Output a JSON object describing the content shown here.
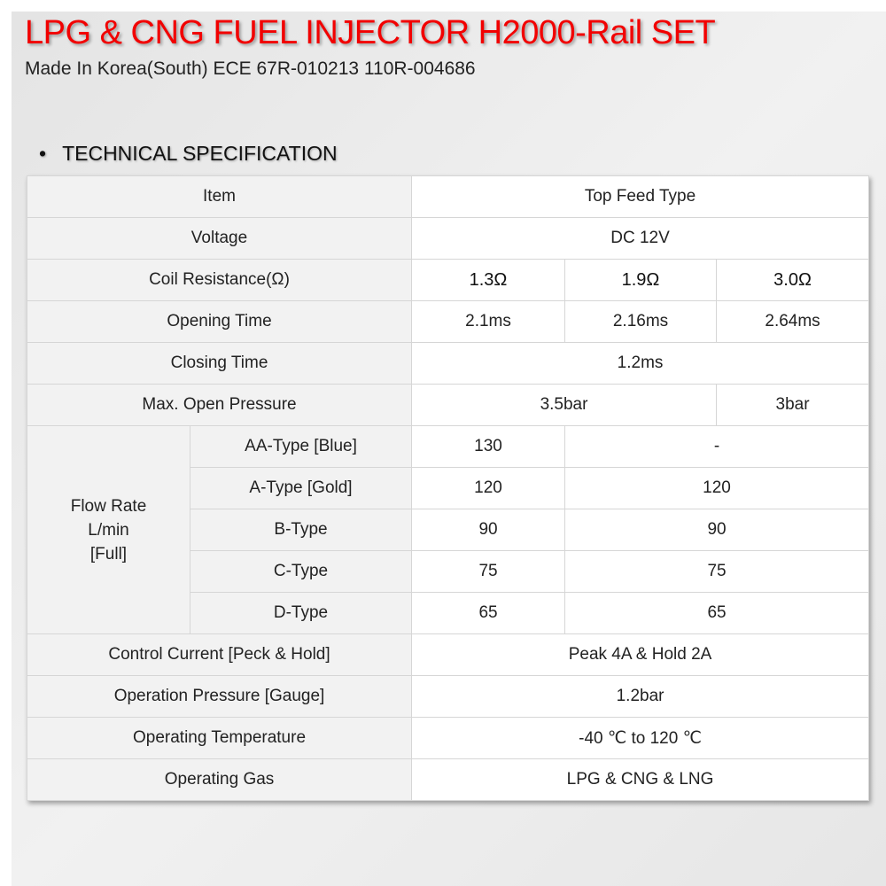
{
  "header": {
    "title": "LPG & CNG FUEL INJECTOR H2000-Rail SET",
    "subtitle": "Made In Korea(South) ECE 67R-010213 110R-004686",
    "section_bullet": "•",
    "section_title": "TECHNICAL SPECIFICATION",
    "title_color": "#f20000"
  },
  "spec": {
    "item": {
      "label": "Item",
      "value": "Top Feed Type"
    },
    "voltage": {
      "label": "Voltage",
      "value": "DC 12V"
    },
    "coil": {
      "label": "Coil Resistance(Ω)",
      "values": [
        "1.3Ω",
        "1.9Ω",
        "3.0Ω"
      ]
    },
    "opening": {
      "label": "Opening Time",
      "values": [
        "2.1ms",
        "2.16ms",
        "2.64ms"
      ]
    },
    "closing": {
      "label": "Closing Time",
      "value": "1.2ms"
    },
    "pressure": {
      "label": "Max. Open Pressure",
      "values": [
        "3.5bar",
        "3bar"
      ]
    },
    "flow": {
      "label_lines": [
        "Flow Rate",
        "L/min",
        "[Full]"
      ],
      "rows": [
        {
          "type": "AA-Type [Blue]",
          "a": "130",
          "b": "-"
        },
        {
          "type": "A-Type [Gold]",
          "a": "120",
          "b": "120"
        },
        {
          "type": "B-Type",
          "a": "90",
          "b": "90"
        },
        {
          "type": "C-Type",
          "a": "75",
          "b": "75"
        },
        {
          "type": "D-Type",
          "a": "65",
          "b": "65"
        }
      ]
    },
    "current": {
      "label": "Control Current [Peck & Hold]",
      "value": "Peak 4A & Hold 2A"
    },
    "op_pressure": {
      "label": "Operation Pressure [Gauge]",
      "value": "1.2bar"
    },
    "temperature": {
      "label": "Operating Temperature",
      "value": "-40 ℃ to 120 ℃"
    },
    "gas": {
      "label": "Operating Gas",
      "value": "LPG & CNG & LNG"
    }
  }
}
